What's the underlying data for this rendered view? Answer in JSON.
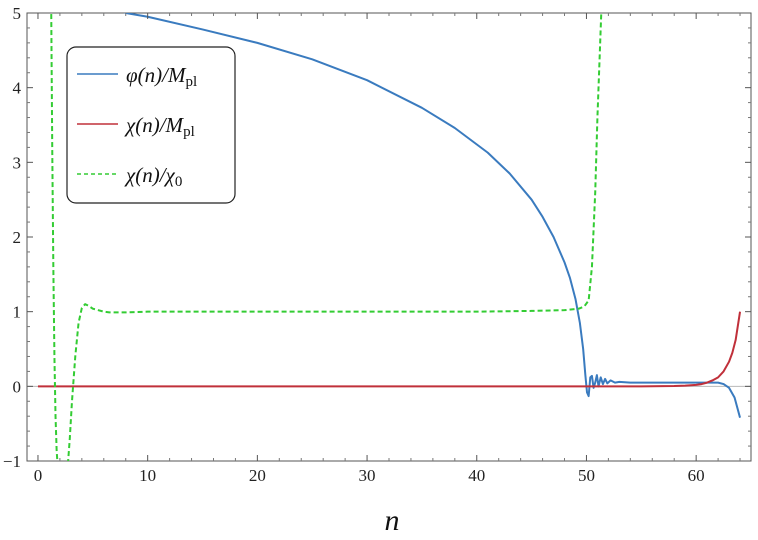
{
  "chart_data": {
    "type": "line",
    "title": "",
    "xlabel": "n",
    "ylabel": "",
    "xlim": [
      -1,
      65
    ],
    "ylim": [
      -1,
      5
    ],
    "xticks": [
      0,
      10,
      20,
      30,
      40,
      50,
      60
    ],
    "yticks": [
      -1,
      0,
      1,
      2,
      3,
      4,
      5
    ],
    "grid": false,
    "legend_position": "top-left",
    "series": [
      {
        "name": "φ(n)/M_pl",
        "label_main": "φ(n)/M",
        "label_sub": "pl",
        "color": "#3a7bbf",
        "style": "solid",
        "x": [
          0,
          2,
          4,
          6,
          8,
          10,
          15,
          20,
          25,
          30,
          35,
          38,
          41,
          43,
          45,
          46,
          47,
          48,
          48.5,
          49,
          49.4,
          49.7,
          49.9,
          50.05,
          50.2,
          50.35,
          50.5,
          50.65,
          50.8,
          50.95,
          51.1,
          51.3,
          51.5,
          51.7,
          51.9,
          52.2,
          52.6,
          53.0,
          54,
          56,
          58,
          60,
          61,
          62,
          62.5,
          63,
          63.5,
          64
        ],
        "y": [
          5.6,
          5.45,
          5.3,
          5.15,
          5.0,
          4.95,
          4.78,
          4.6,
          4.38,
          4.1,
          3.73,
          3.46,
          3.13,
          2.85,
          2.5,
          2.27,
          2.0,
          1.66,
          1.45,
          1.17,
          0.85,
          0.5,
          0.15,
          -0.08,
          -0.13,
          0.12,
          0.14,
          -0.02,
          0.05,
          0.15,
          0.0,
          0.12,
          0.03,
          0.1,
          0.04,
          0.08,
          0.05,
          0.06,
          0.05,
          0.05,
          0.05,
          0.05,
          0.05,
          0.05,
          0.03,
          -0.02,
          -0.15,
          -0.42
        ]
      },
      {
        "name": "χ(n)/M_pl",
        "label_main": "χ(n)/M",
        "label_sub": "pl",
        "color": "#c0303a",
        "style": "solid",
        "x": [
          0,
          10,
          20,
          30,
          40,
          50,
          55,
          58,
          59,
          60,
          60.5,
          61,
          61.5,
          62,
          62.5,
          63,
          63.3,
          63.6,
          64
        ],
        "y": [
          0,
          0,
          0,
          0,
          0,
          0,
          0,
          0.005,
          0.01,
          0.02,
          0.03,
          0.05,
          0.08,
          0.12,
          0.2,
          0.33,
          0.45,
          0.62,
          1.0
        ]
      },
      {
        "name": "χ(n)/χ_0",
        "label_main": "χ(n)/χ",
        "label_sub": "0",
        "color": "#33cc33",
        "style": "dashed",
        "x": [
          1.2,
          1.3,
          1.4,
          1.5,
          1.6,
          1.7,
          1.85,
          2.3,
          2.7,
          2.9,
          3.1,
          3.4,
          3.7,
          4.0,
          4.3,
          4.6,
          5.0,
          5.5,
          6.0,
          6.5,
          7,
          8,
          10,
          20,
          30,
          40,
          45,
          48,
          49.3,
          49.8,
          50.2,
          50.5,
          50.8,
          51.0,
          51.2,
          51.4,
          51.6
        ],
        "y": [
          5.2,
          3.2,
          1.6,
          0.4,
          -0.4,
          -0.85,
          -1.2,
          -1.2,
          -1.1,
          -0.7,
          -0.2,
          0.4,
          0.85,
          1.05,
          1.1,
          1.08,
          1.04,
          1.02,
          1.0,
          0.99,
          0.99,
          0.99,
          1.0,
          1.0,
          1.0,
          1.0,
          1.01,
          1.02,
          1.04,
          1.07,
          1.15,
          1.6,
          2.6,
          3.6,
          4.4,
          5.2,
          5.8
        ]
      }
    ]
  }
}
